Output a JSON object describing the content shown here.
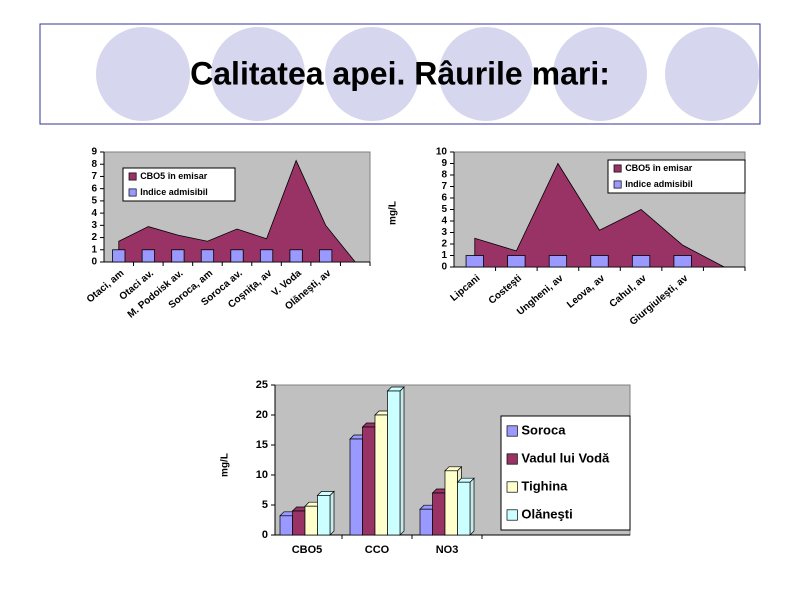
{
  "title": "Calitatea apei. Râurile mari:",
  "chart_data": [
    {
      "type": "area",
      "categories": [
        "Otaci, am",
        "Otaci av.",
        "M. Podoisk av.",
        "Soroca, am",
        "Soroca av.",
        "Coşniţa, av",
        "V. Voda",
        "Olăneşti, av",
        null
      ],
      "series": [
        {
          "name": "CBO5 în emisar",
          "type": "area",
          "color": "#993366",
          "values": [
            1.7,
            2.9,
            2.2,
            1.7,
            2.7,
            1.9,
            8.3,
            3.0,
            0
          ]
        },
        {
          "name": "Indice admisibil",
          "type": "bar",
          "color": "#9999ff",
          "values": [
            1,
            1,
            1,
            1,
            1,
            1,
            1,
            1,
            null
          ]
        }
      ],
      "ylim": [
        0,
        9
      ],
      "yticks": [
        0,
        1,
        2,
        3,
        4,
        5,
        6,
        7,
        8,
        9
      ],
      "grid": false
    },
    {
      "type": "area",
      "y_label": "mg/L",
      "categories": [
        "Lipcani",
        "Costeşti",
        "Ungheni, av",
        "Leova, av",
        "Cahul, av",
        "Giurgiuleşti, av",
        null
      ],
      "series": [
        {
          "name": "CBO5 în emisar",
          "type": "area",
          "color": "#993366",
          "values": [
            2.5,
            1.4,
            9.0,
            3.2,
            5.0,
            1.9,
            0
          ]
        },
        {
          "name": "Indice admisibil",
          "type": "bar",
          "color": "#9999ff",
          "values": [
            1,
            1,
            1,
            1,
            1,
            1,
            null
          ]
        }
      ],
      "ylim": [
        0,
        10
      ],
      "yticks": [
        0,
        1,
        2,
        3,
        4,
        5,
        6,
        7,
        8,
        9,
        10
      ],
      "grid": false
    },
    {
      "type": "bar",
      "y_label": "mg/L",
      "categories": [
        "CBO5",
        "CCO",
        "NO3"
      ],
      "series": [
        {
          "name": "Soroca",
          "color": "#9999ff",
          "values": [
            3.2,
            16,
            4.3
          ]
        },
        {
          "name": "Vadul lui Vodă",
          "color": "#993366",
          "values": [
            4,
            18,
            7
          ]
        },
        {
          "name": "Tighina",
          "color": "#ffffcc",
          "values": [
            4.8,
            20,
            10.7
          ]
        },
        {
          "name": "Olăneşti",
          "color": "#ccffff",
          "values": [
            6.6,
            24,
            8.8
          ]
        }
      ],
      "ylim": [
        0,
        25
      ],
      "yticks": [
        0,
        5,
        10,
        15,
        20,
        25
      ],
      "grid": false
    }
  ]
}
